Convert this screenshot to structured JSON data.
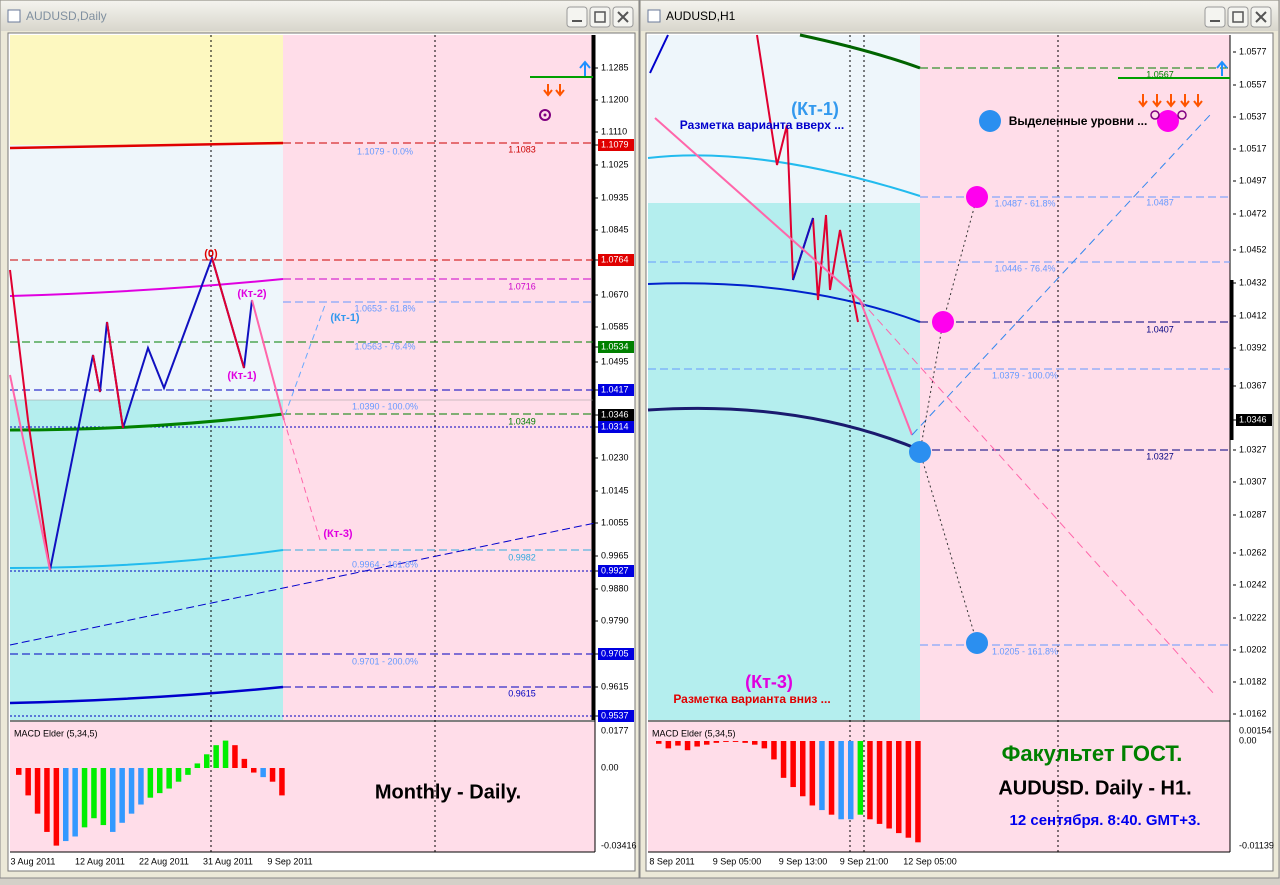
{
  "windows": [
    {
      "title": "AUDUSD,Daily",
      "price_axis": [
        "1.1285",
        "1.1200",
        "1.1110",
        "1.1079",
        "1.1025",
        "1.0935",
        "1.0845",
        "1.0764",
        "1.0670",
        "1.0585",
        "1.0534",
        "1.0495",
        "1.0417",
        "1.0346",
        "1.0314",
        "1.0230",
        "1.0145",
        "1.0055",
        "0.9965",
        "0.9927",
        "0.9880",
        "0.9790",
        "0.9705",
        "0.9615",
        "0.9537"
      ],
      "macd_axis": [
        "0.0177",
        "0.00",
        "-0.03416"
      ],
      "dates": [
        "3 Aug 2011",
        "12 Aug 2011",
        "22 Aug 2011",
        "31 Aug 2011",
        "9 Sep 2011"
      ],
      "annotations": [
        "1.1079 - 0.0%",
        "1.1083",
        "1.0716",
        "1.0653 - 61.8%",
        "1.0563 - 76.4%",
        "1.0390 - 100.0%",
        "1.0349",
        "0.9982",
        "0.9964 - 161.8%",
        "0.9701 - 200.0%",
        "0.9615",
        "(0)",
        "(Кт-2)",
        "(Кт-1)",
        "(Кт-1)",
        "(Кт-3)",
        "Monthly - Daily."
      ],
      "macd": {
        "label": "MACD Elder (5,34,5)",
        "values": [
          -0.003,
          -0.012,
          -0.02,
          -0.028,
          -0.034,
          -0.032,
          -0.03,
          -0.026,
          -0.022,
          -0.025,
          -0.028,
          -0.024,
          -0.02,
          -0.016,
          -0.013,
          -0.011,
          -0.009,
          -0.006,
          -0.003,
          0.002,
          0.006,
          0.01,
          0.012,
          0.01,
          0.004,
          -0.002,
          -0.004,
          -0.006,
          -0.012
        ],
        "colors": [
          "#ff0000",
          "#ff0000",
          "#ff0000",
          "#ff0000",
          "#ff0000",
          "#3399ff",
          "#3399ff",
          "#00ee00",
          "#00ee00",
          "#00ee00",
          "#3399ff",
          "#3399ff",
          "#3399ff",
          "#3399ff",
          "#00ee00",
          "#00ee00",
          "#00ee00",
          "#00ee00",
          "#00ee00",
          "#00ee00",
          "#00ee00",
          "#00ee00",
          "#00ee00",
          "#ff0000",
          "#ff0000",
          "#ff0000",
          "#3399ff",
          "#ff0000",
          "#ff0000"
        ]
      }
    },
    {
      "title": "AUDUSD,H1",
      "price_axis": [
        "1.0577",
        "1.0557",
        "1.0537",
        "1.0517",
        "1.0497",
        "1.0472",
        "1.0452",
        "1.0432",
        "1.0412",
        "1.0392",
        "1.0367",
        "1.0346",
        "1.0327",
        "1.0307",
        "1.0287",
        "1.0262",
        "1.0242",
        "1.0222",
        "1.0202",
        "1.0182",
        "1.0162"
      ],
      "macd_axis": [
        "0.00154",
        "0.00",
        "-0.01139"
      ],
      "dates": [
        "8 Sep 2011",
        "9 Sep 05:00",
        "9 Sep 13:00",
        "9 Sep 21:00",
        "12 Sep 05:00"
      ],
      "annotations": [
        "1.0567",
        "1.0487 - 61.8%",
        "1.0487",
        "1.0446 - 76.4%",
        "1.0407",
        "1.0379 - 100.0%",
        "1.0327",
        "1.0205 - 161.8%",
        "(Кт-1)",
        "Разметка варианта вверх ...",
        "Выделенные уровни ...",
        "(Кт-3)",
        "Разметка варианта вниз ...",
        "Факультет ГОСТ.",
        "AUDUSD. Daily - H1.",
        "12 сентября. 8:40. GMT+3."
      ],
      "macd": {
        "label": "MACD Elder (5,34,5)",
        "values": [
          -0.0003,
          -0.0008,
          -0.0005,
          -0.001,
          -0.0006,
          -0.0004,
          -0.0002,
          -0.0001,
          -0.0001,
          -0.0002,
          -0.0004,
          -0.0008,
          -0.002,
          -0.004,
          -0.005,
          -0.006,
          -0.007,
          -0.0075,
          -0.008,
          -0.0085,
          -0.0085,
          -0.008,
          -0.0085,
          -0.009,
          -0.0095,
          -0.01,
          -0.0105,
          -0.011
        ],
        "colors": [
          "#ff0000",
          "#ff0000",
          "#ff0000",
          "#ff0000",
          "#ff0000",
          "#ff0000",
          "#ff0000",
          "#ff0000",
          "#ff0000",
          "#ff0000",
          "#ff0000",
          "#ff0000",
          "#ff0000",
          "#ff0000",
          "#ff0000",
          "#ff0000",
          "#ff0000",
          "#3399ff",
          "#ff0000",
          "#3399ff",
          "#3399ff",
          "#00ee00",
          "#ff0000",
          "#ff0000",
          "#ff0000",
          "#ff0000",
          "#ff0000",
          "#ff0000"
        ]
      }
    }
  ]
}
